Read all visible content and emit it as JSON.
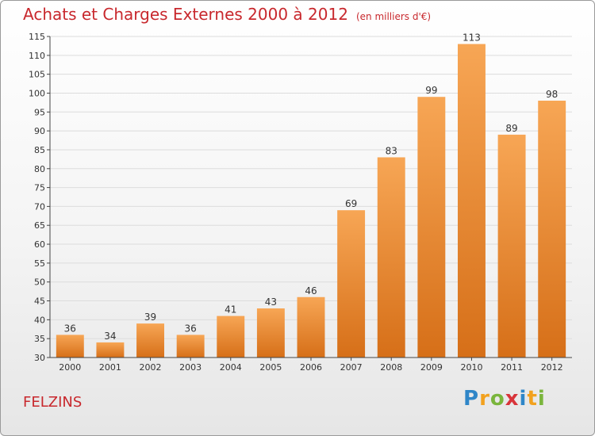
{
  "title": "Achats et Charges Externes 2000 à 2012",
  "unit": "(en milliers d'€)",
  "commune": "FELZINS",
  "brand": "Proxiti",
  "colors": {
    "title": "#c8282d",
    "bar_light": "#f7a655",
    "bar_dark": "#d66f18",
    "grid": "#dcdcdc",
    "axis": "#444444"
  },
  "chart_data": {
    "type": "bar",
    "title": "Achats et Charges Externes 2000 à 2012",
    "subtitle": "(en milliers d'€)",
    "categories": [
      "2000",
      "2001",
      "2002",
      "2003",
      "2004",
      "2005",
      "2006",
      "2007",
      "2008",
      "2009",
      "2010",
      "2011",
      "2012"
    ],
    "values": [
      36,
      34,
      39,
      36,
      41,
      43,
      46,
      69,
      83,
      99,
      113,
      89,
      98
    ],
    "ylim": [
      30,
      115
    ],
    "ytick_step": 5,
    "grid": true,
    "data_labels": true
  }
}
